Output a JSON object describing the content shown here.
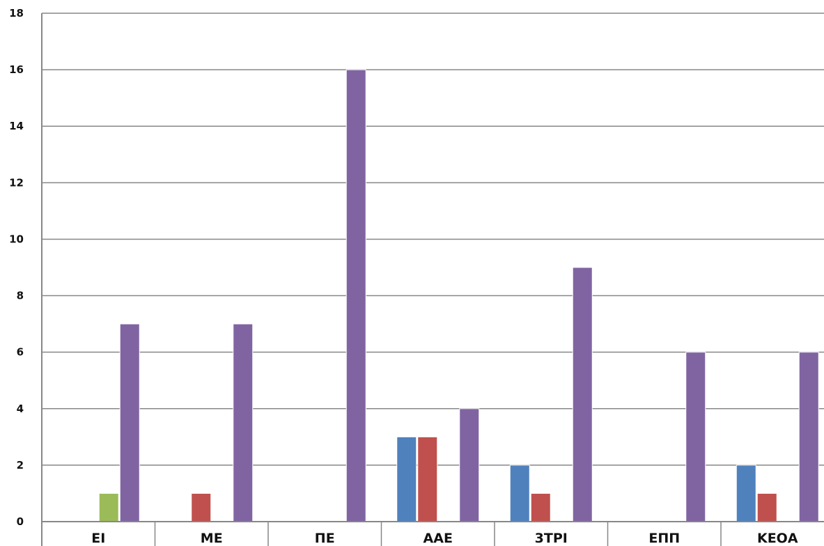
{
  "chart_data": {
    "type": "bar",
    "title": "",
    "xlabel": "",
    "ylabel": "",
    "ylim": [
      0,
      18
    ],
    "yticks": [
      0,
      2,
      4,
      6,
      8,
      10,
      12,
      14,
      16,
      18
    ],
    "grid": true,
    "legend": "none",
    "categories": [
      "ΕΙ",
      "ΜΕ",
      "ΠΕ",
      "ΑΑΕ",
      "3ΤΡΙ",
      "ΕΠΠ",
      "ΚΕΟΑ"
    ],
    "series": [
      {
        "color": "#4f81bd",
        "values": [
          0,
          0,
          0,
          3,
          2,
          0,
          2
        ]
      },
      {
        "color": "#c0504d",
        "values": [
          0,
          1,
          0,
          3,
          1,
          0,
          1
        ]
      },
      {
        "color": "#9bbb59",
        "values": [
          1,
          0,
          0,
          0,
          0,
          0,
          0
        ]
      },
      {
        "color": "#8064a2",
        "values": [
          7,
          7,
          16,
          4,
          9,
          6,
          6
        ]
      }
    ]
  }
}
